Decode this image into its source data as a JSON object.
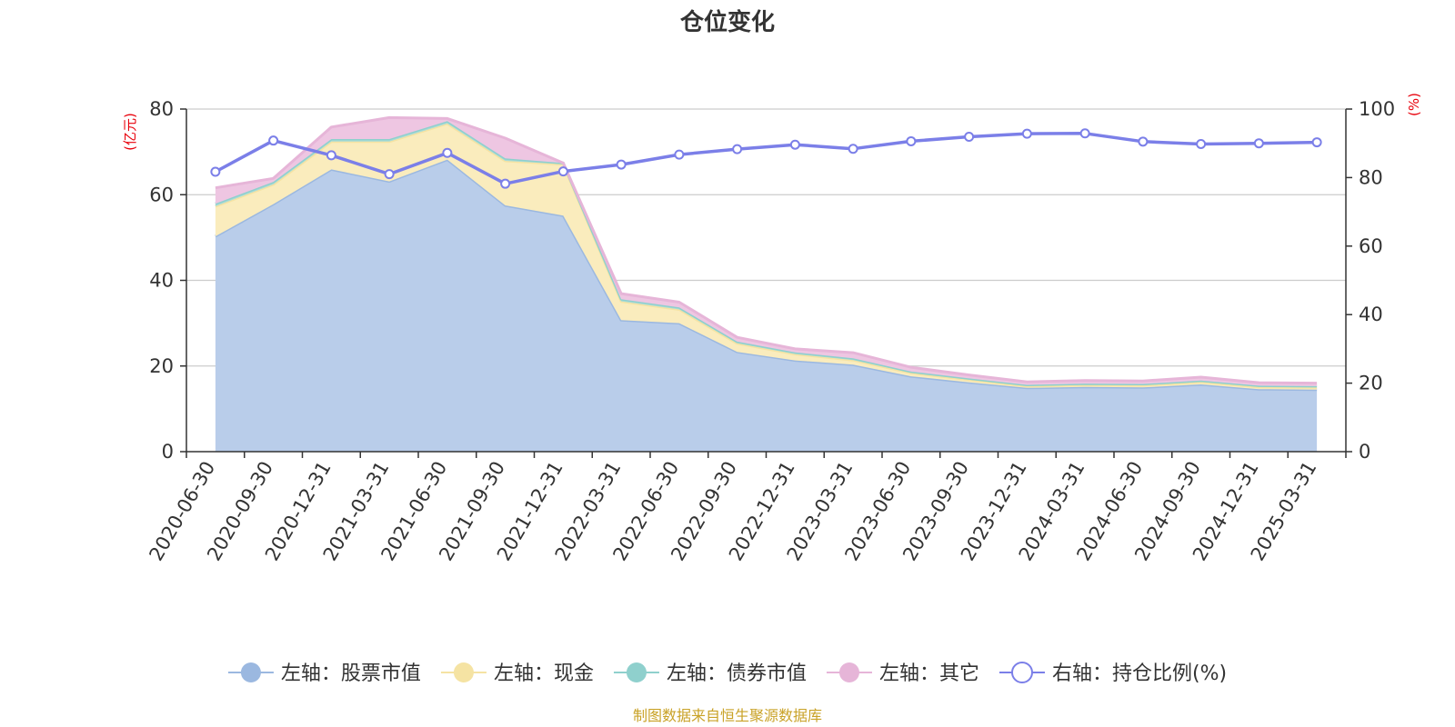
{
  "chart_data": {
    "type": "area",
    "title": "仓位变化",
    "categories": [
      "2020-06-30",
      "2020-09-30",
      "2020-12-31",
      "2021-03-31",
      "2021-06-30",
      "2021-09-30",
      "2021-12-31",
      "2022-03-31",
      "2022-06-30",
      "2022-09-30",
      "2022-12-31",
      "2023-03-31",
      "2023-06-30",
      "2023-09-30",
      "2023-12-31",
      "2024-03-31",
      "2024-06-30",
      "2024-09-30",
      "2024-12-31",
      "2025-03-31"
    ],
    "left_axis": {
      "unit": "(亿元)",
      "ylim": [
        0,
        80
      ],
      "ticks": [
        0,
        20,
        40,
        60,
        80
      ]
    },
    "right_axis": {
      "unit": "(%)",
      "ylim": [
        0,
        100
      ],
      "ticks": [
        0,
        20,
        40,
        60,
        80,
        100
      ]
    },
    "stacked_series": [
      {
        "name": "左轴：股票市值",
        "color": "#9bb8e0",
        "fill": "#b9cdea",
        "values": [
          50.3,
          57.8,
          65.9,
          63.1,
          68.2,
          57.5,
          55.1,
          30.7,
          30.0,
          23.3,
          21.3,
          20.3,
          17.6,
          16.2,
          14.9,
          15.1,
          15.0,
          15.7,
          14.6,
          14.5
        ]
      },
      {
        "name": "左轴：现金",
        "color": "#f5e3a3",
        "fill": "#faecbd",
        "values": [
          7.0,
          4.6,
          6.5,
          9.3,
          8.4,
          10.4,
          12.0,
          4.4,
          3.2,
          2.0,
          1.5,
          1.1,
          0.8,
          0.6,
          0.4,
          0.5,
          0.5,
          0.6,
          0.5,
          0.5
        ]
      },
      {
        "name": "左轴：债券市值",
        "color": "#8fd0cd",
        "fill": "#a9dbd8",
        "values": [
          0.6,
          0.6,
          0.6,
          0.6,
          0.6,
          0.6,
          0.3,
          0.5,
          0.5,
          0.4,
          0.4,
          0.4,
          0.3,
          0.3,
          0.3,
          0.3,
          0.3,
          0.3,
          0.3,
          0.3
        ]
      },
      {
        "name": "左轴：其它",
        "color": "#e6b5d8",
        "fill": "#eec6e2",
        "values": [
          3.7,
          0.8,
          2.8,
          5.0,
          0.6,
          4.7,
          0.0,
          1.3,
          1.2,
          1.0,
          0.8,
          1.3,
          1.0,
          0.8,
          0.7,
          0.7,
          0.7,
          0.8,
          0.7,
          0.7
        ]
      }
    ],
    "line_series": {
      "name": "右轴：持仓比例(%)",
      "color": "#7b7fe8",
      "values": [
        81.7,
        90.8,
        86.5,
        81.0,
        87.2,
        78.2,
        81.8,
        83.8,
        86.7,
        88.3,
        89.6,
        88.4,
        90.6,
        91.9,
        92.8,
        92.9,
        90.5,
        89.8,
        90.0,
        90.3
      ]
    },
    "grid": true,
    "legend_position": "bottom",
    "axis_color": "#e8000b"
  },
  "source_text": "制图数据来自恒生聚源数据库",
  "source_color": "#c9a227"
}
